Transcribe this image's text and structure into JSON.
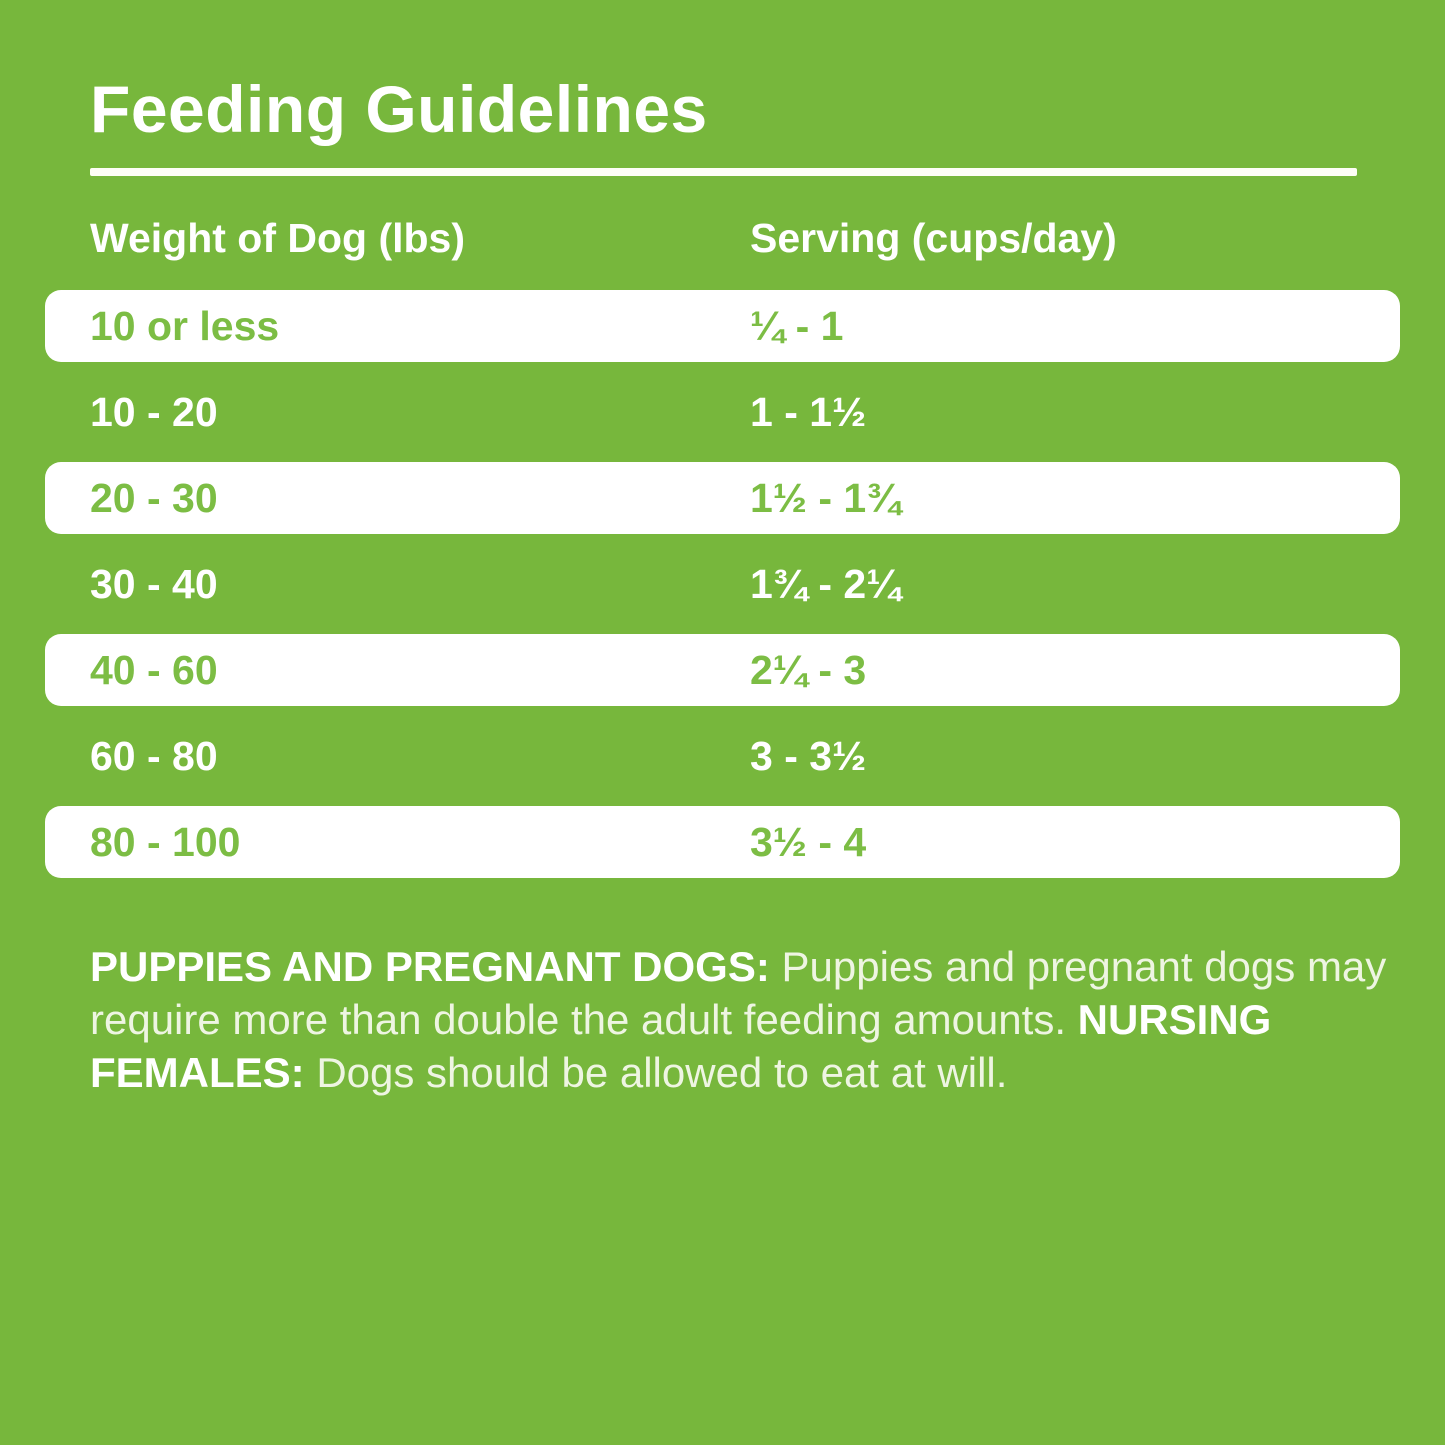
{
  "title": "Feeding Guidelines",
  "colors": {
    "background_green": "#77b73c",
    "row_white": "#ffffff",
    "green_text_on_white": "#7cbd44",
    "white_text": "#ffffff",
    "note_regular_text": "#eef5e2"
  },
  "table": {
    "headers": [
      "Weight of Dog (lbs)",
      "Serving (cups/day)"
    ],
    "rows": [
      {
        "weight": "10 or less",
        "serving": "¼ - 1",
        "style": "white"
      },
      {
        "weight": "10 - 20",
        "serving": "1 - 1½",
        "style": "green"
      },
      {
        "weight": "20 - 30",
        "serving": "1½ - 1¾",
        "style": "white"
      },
      {
        "weight": "30 - 40",
        "serving": "1¾ - 2¼",
        "style": "green"
      },
      {
        "weight": "40 - 60",
        "serving": "2¼ - 3",
        "style": "white"
      },
      {
        "weight": "60 - 80",
        "serving": "3 - 3½",
        "style": "green"
      },
      {
        "weight": "80 - 100",
        "serving": "3½ - 4",
        "style": "white"
      }
    ]
  },
  "note": {
    "segments": [
      {
        "text": "PUPPIES AND PREGNANT DOGS: ",
        "bold": true
      },
      {
        "text": "Puppies and pregnant dogs may require more than double the adult feeding amounts. ",
        "bold": false
      },
      {
        "text": "NURSING FEMALES: ",
        "bold": true
      },
      {
        "text": "Dogs should be allowed to eat at will.",
        "bold": false
      }
    ]
  }
}
